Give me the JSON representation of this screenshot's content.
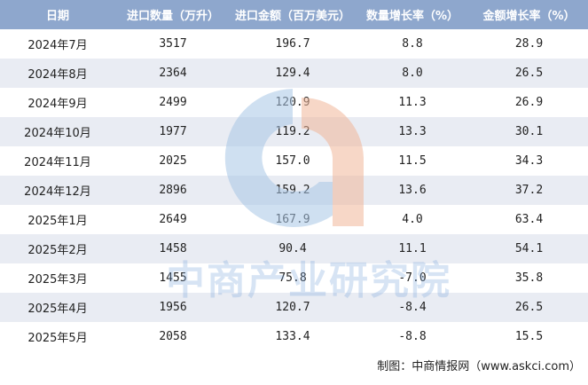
{
  "table": {
    "headers": [
      "日期",
      "进口数量（万升）",
      "进口金额（百万美元）",
      "数量增长率（%）",
      "金额增长率（%）"
    ],
    "rows": [
      [
        "2024年7月",
        "3517",
        "196.7",
        "8.8",
        "28.9"
      ],
      [
        "2024年8月",
        "2364",
        "129.4",
        "8.0",
        "26.5"
      ],
      [
        "2024年9月",
        "2499",
        "120.9",
        "11.3",
        "26.9"
      ],
      [
        "2024年10月",
        "1977",
        "119.2",
        "13.3",
        "30.1"
      ],
      [
        "2024年11月",
        "2025",
        "157.0",
        "11.5",
        "34.3"
      ],
      [
        "2024年12月",
        "2896",
        "159.2",
        "13.6",
        "37.2"
      ],
      [
        "2025年1月",
        "2649",
        "167.9",
        "4.0",
        "63.4"
      ],
      [
        "2025年2月",
        "1458",
        "90.4",
        "11.1",
        "54.1"
      ],
      [
        "2025年3月",
        "1455",
        "75.8",
        "-7.0",
        "35.8"
      ],
      [
        "2025年4月",
        "1956",
        "120.7",
        "-8.4",
        "26.5"
      ],
      [
        "2025年5月",
        "2058",
        "133.4",
        "-8.8",
        "15.5"
      ]
    ]
  },
  "watermark": {
    "text": "中商产业研究院",
    "logo_colors": {
      "blue": "#a9c7e6",
      "orange": "#f2b79a"
    }
  },
  "footer": {
    "source": "制图：中商情报网（www.askci.com）"
  }
}
